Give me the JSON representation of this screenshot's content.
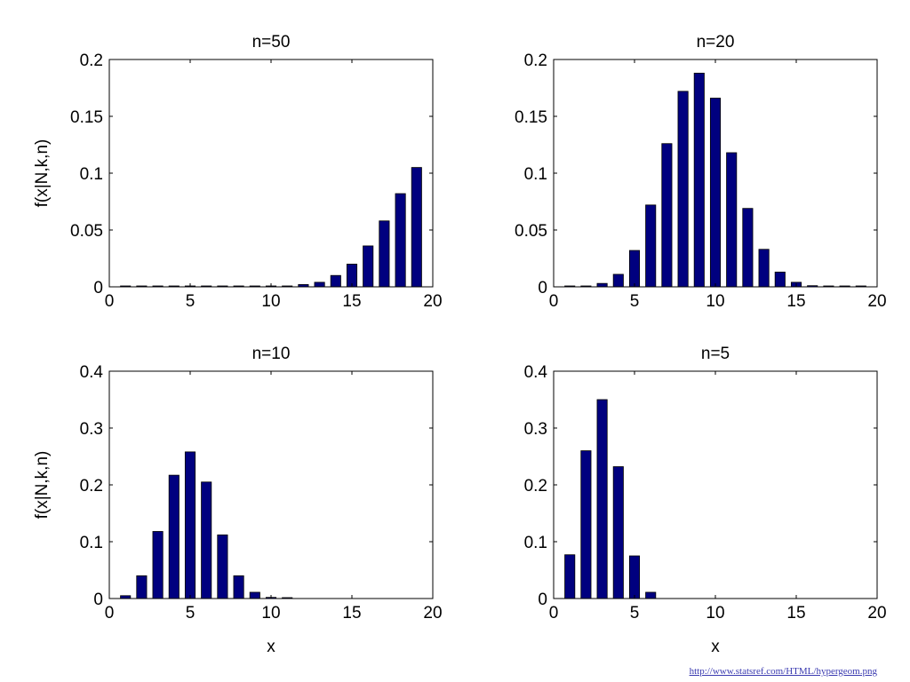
{
  "colors": {
    "bar": "#00007f",
    "bar_edge": "#000000",
    "axes": "#000000"
  },
  "source_link": "http://www.statsref.com/HTML/hypergeom.png",
  "chart_data": [
    {
      "type": "bar",
      "title": "n=50",
      "xlabel": "",
      "ylabel": "f(x|N,k,n)",
      "xlim": [
        0,
        20
      ],
      "ylim": [
        0,
        0.2
      ],
      "xticks": [
        0,
        5,
        10,
        15,
        20
      ],
      "yticks": [
        0,
        0.05,
        0.1,
        0.15,
        0.2
      ],
      "x": [
        1,
        2,
        3,
        4,
        5,
        6,
        7,
        8,
        9,
        10,
        11,
        12,
        13,
        14,
        15,
        16,
        17,
        18,
        19
      ],
      "values": [
        0.0002,
        0.0002,
        0.0002,
        0.0002,
        0.0002,
        0.0002,
        0.0002,
        0.0002,
        0.0002,
        0.0003,
        0.0005,
        0.002,
        0.004,
        0.01,
        0.02,
        0.036,
        0.058,
        0.082,
        0.105
      ]
    },
    {
      "type": "bar",
      "title": "n=20",
      "xlabel": "",
      "ylabel": "",
      "xlim": [
        0,
        20
      ],
      "ylim": [
        0,
        0.2
      ],
      "xticks": [
        0,
        5,
        10,
        15,
        20
      ],
      "yticks": [
        0,
        0.05,
        0.1,
        0.15,
        0.2
      ],
      "x": [
        1,
        2,
        3,
        4,
        5,
        6,
        7,
        8,
        9,
        10,
        11,
        12,
        13,
        14,
        15,
        16,
        17,
        18,
        19
      ],
      "values": [
        0.0002,
        0.0007,
        0.003,
        0.011,
        0.032,
        0.072,
        0.126,
        0.172,
        0.188,
        0.166,
        0.118,
        0.069,
        0.033,
        0.013,
        0.004,
        0.001,
        0.0003,
        0.0002,
        0.0002
      ]
    },
    {
      "type": "bar",
      "title": "n=10",
      "xlabel": "x",
      "ylabel": "f(x|N,k,n)",
      "xlim": [
        0,
        20
      ],
      "ylim": [
        0,
        0.4
      ],
      "xticks": [
        0,
        5,
        10,
        15,
        20
      ],
      "yticks": [
        0,
        0.1,
        0.2,
        0.3,
        0.4
      ],
      "x": [
        1,
        2,
        3,
        4,
        5,
        6,
        7,
        8,
        9,
        10,
        11
      ],
      "values": [
        0.005,
        0.04,
        0.118,
        0.217,
        0.258,
        0.205,
        0.112,
        0.04,
        0.011,
        0.002,
        0.001
      ]
    },
    {
      "type": "bar",
      "title": "n=5",
      "xlabel": "x",
      "ylabel": "",
      "xlim": [
        0,
        20
      ],
      "ylim": [
        0,
        0.4
      ],
      "xticks": [
        0,
        5,
        10,
        15,
        20
      ],
      "yticks": [
        0,
        0.1,
        0.2,
        0.3,
        0.4
      ],
      "x": [
        1,
        2,
        3,
        4,
        5,
        6
      ],
      "values": [
        0.077,
        0.26,
        0.35,
        0.232,
        0.075,
        0.011
      ]
    }
  ]
}
